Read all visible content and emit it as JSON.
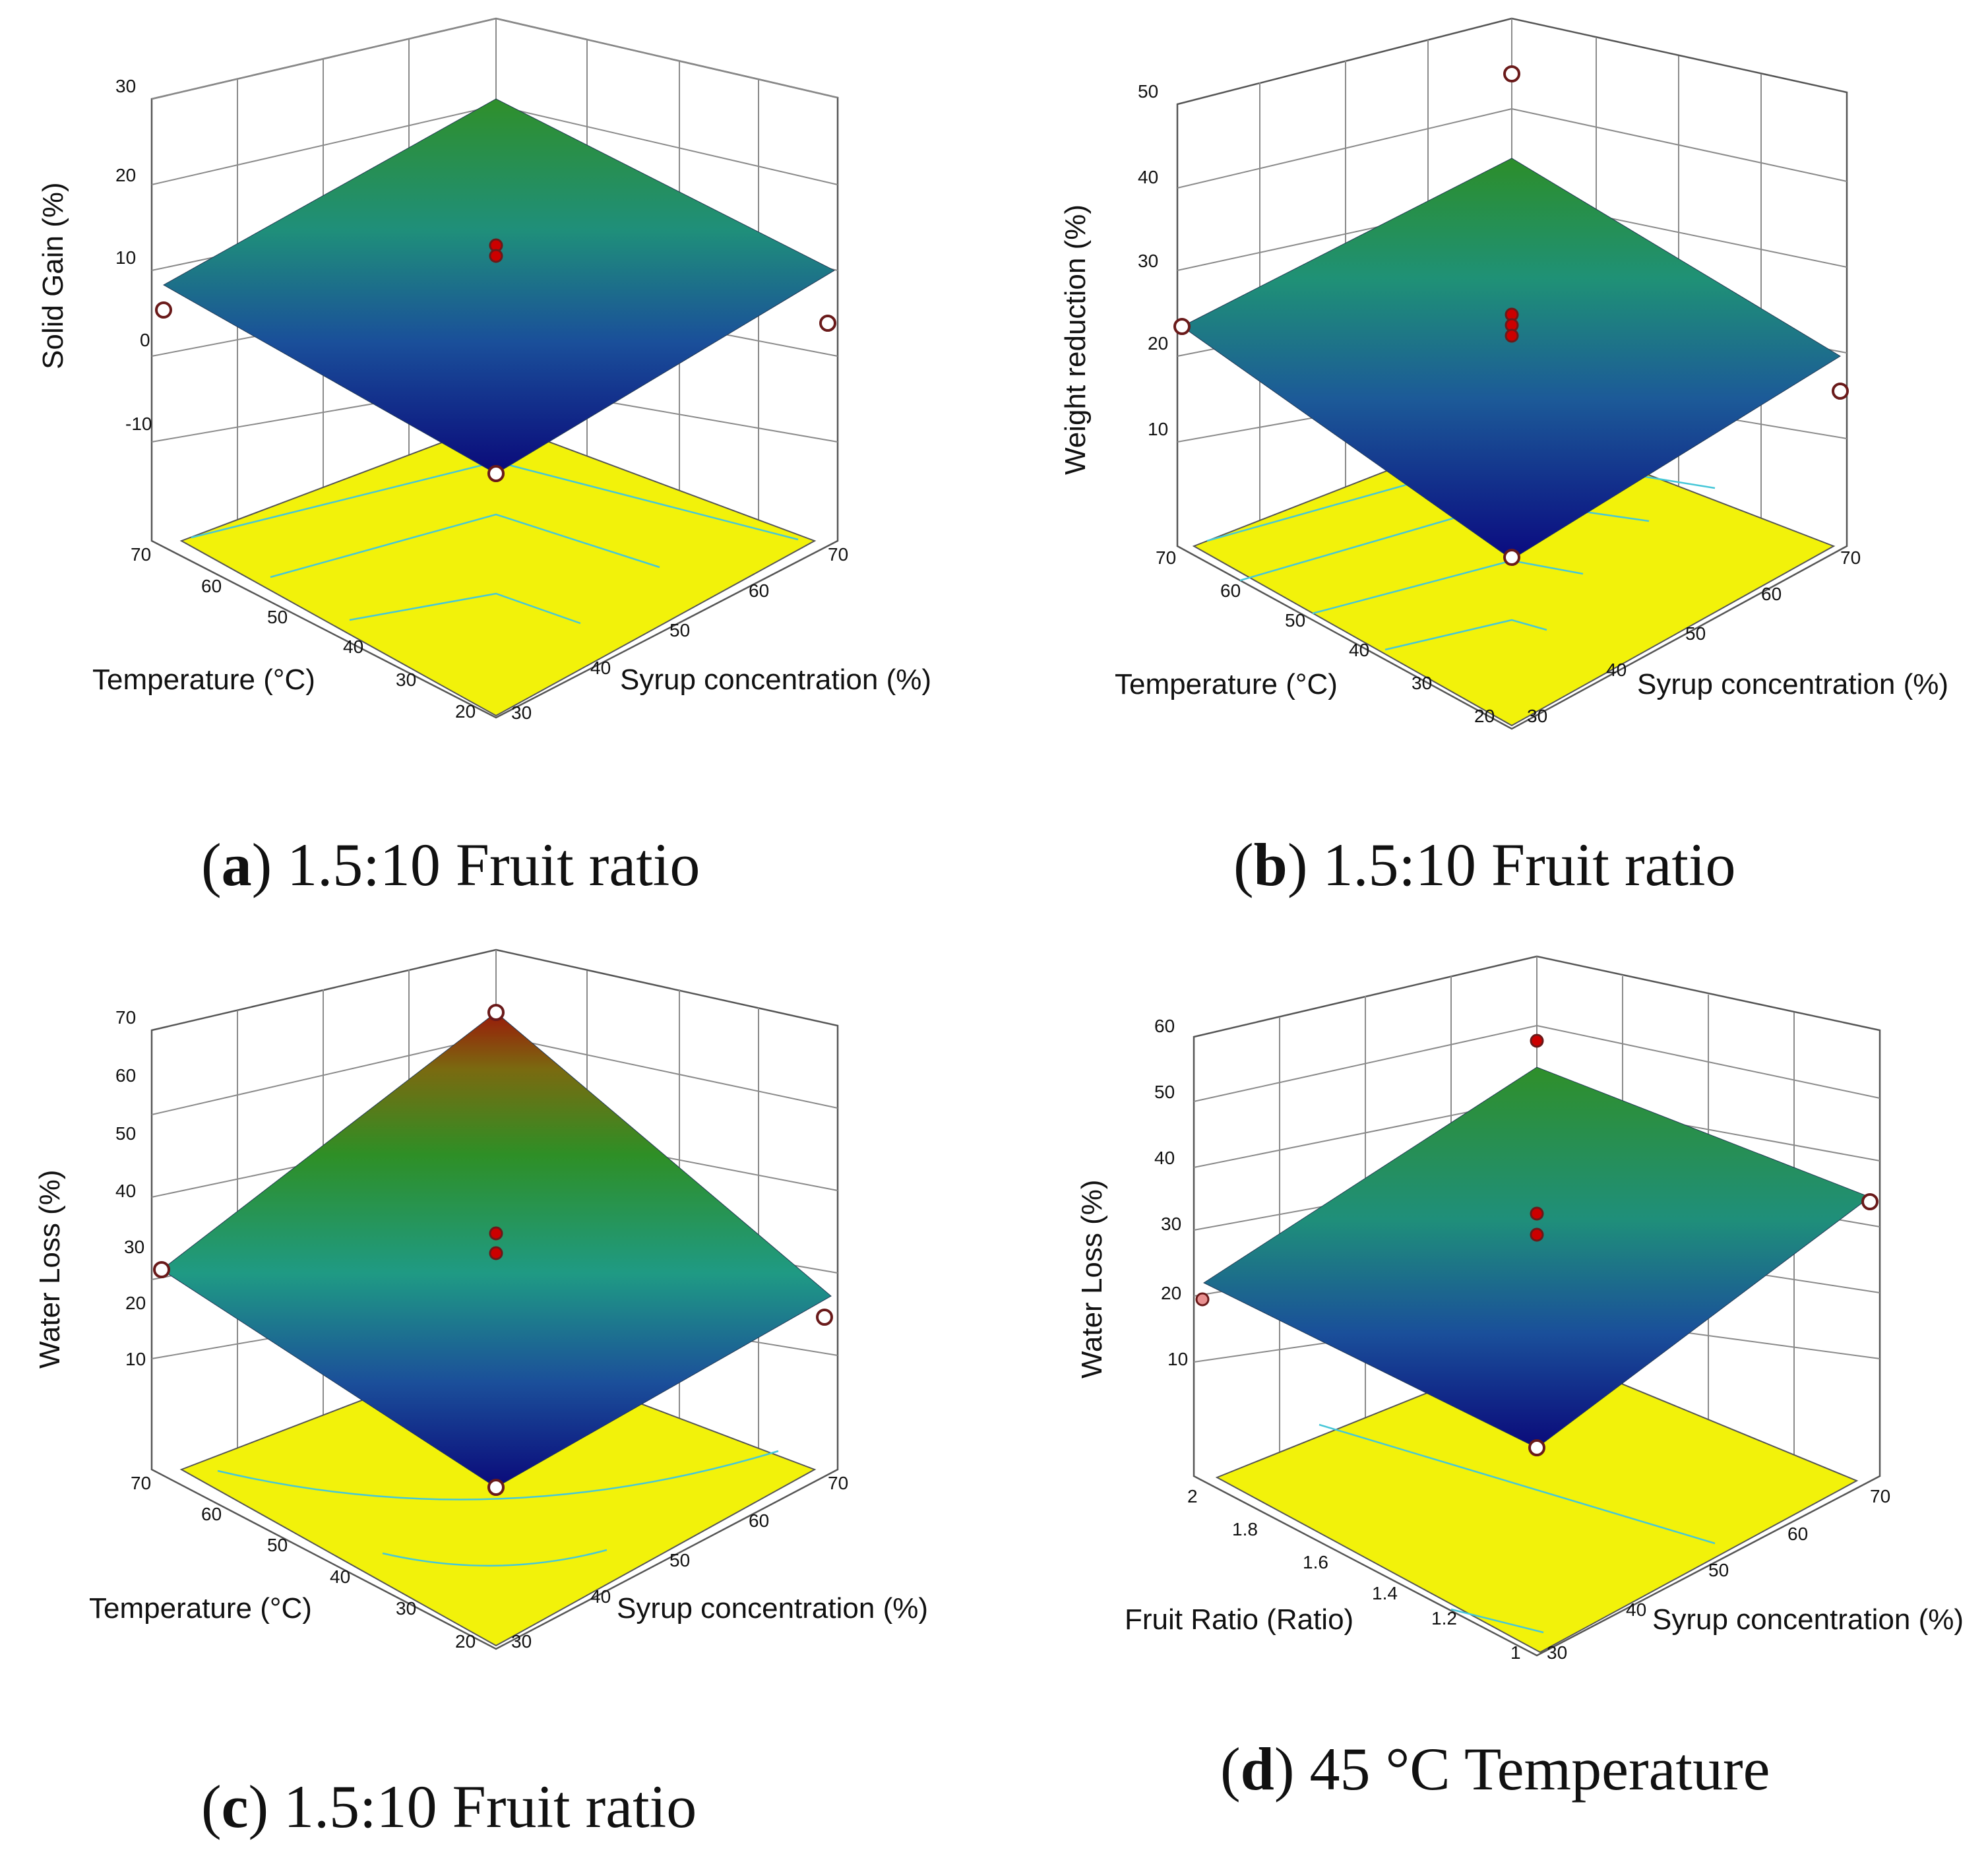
{
  "charts": [
    {
      "caption_letter": "a",
      "caption_text": "1.5:10 Fruit ratio",
      "z_label": "Solid Gain (%)",
      "x_label": "Temperature (°C)",
      "y_label": "Syrup concentration (%)",
      "x_ticks": [
        "70",
        "60",
        "50",
        "40",
        "30",
        "20"
      ],
      "y_ticks": [
        "30",
        "40",
        "50",
        "60",
        "70"
      ],
      "z_ticks": [
        "30",
        "20",
        "10",
        "0",
        "-10"
      ]
    },
    {
      "caption_letter": "b",
      "caption_text": "1.5:10 Fruit ratio",
      "z_label": "Weight reduction (%)",
      "x_label": "Temperature (°C)",
      "y_label": "Syrup concentration (%)",
      "x_ticks": [
        "70",
        "60",
        "50",
        "40",
        "30",
        "20"
      ],
      "y_ticks": [
        "30",
        "40",
        "50",
        "60",
        "70"
      ],
      "z_ticks": [
        "50",
        "40",
        "30",
        "20",
        "10"
      ]
    },
    {
      "caption_letter": "c",
      "caption_text": "1.5:10 Fruit ratio",
      "z_label": "Water Loss  (%)",
      "x_label": "Temperature (°C)",
      "y_label": "Syrup concentration (%)",
      "x_ticks": [
        "70",
        "60",
        "50",
        "40",
        "30",
        "20"
      ],
      "y_ticks": [
        "30",
        "40",
        "50",
        "60",
        "70"
      ],
      "z_ticks": [
        "70",
        "60",
        "50",
        "40",
        "30",
        "20",
        "10"
      ]
    },
    {
      "caption_letter": "d",
      "caption_text": "45 °C Temperature",
      "z_label": "Water Loss  (%)",
      "x_label": "Fruit  Ratio (Ratio)",
      "y_label": "Syrup concentration (%)",
      "x_ticks": [
        "2",
        "1.8",
        "1.6",
        "1.4",
        "1.2",
        "1"
      ],
      "y_ticks": [
        "30",
        "40",
        "50",
        "60",
        "70"
      ],
      "z_ticks": [
        "60",
        "50",
        "40",
        "30",
        "20",
        "10"
      ]
    }
  ],
  "chart_data": [
    {
      "type": "surface",
      "title": "(a) 1.5:10 Fruit ratio",
      "xlabel": "Temperature (°C)",
      "ylabel": "Syrup concentration (%)",
      "zlabel": "Solid Gain (%)",
      "xlim": [
        20,
        70
      ],
      "ylim": [
        30,
        70
      ],
      "zlim": [
        -20,
        30
      ],
      "surface_corners": {
        "T20_S30": -15,
        "T70_S30": 6,
        "T20_S70": 6,
        "T70_S70": 25
      },
      "design_points": [
        {
          "x": 20,
          "y": 30,
          "z": -15,
          "color": "white"
        },
        {
          "x": 70,
          "y": 30,
          "z": 6,
          "color": "white"
        },
        {
          "x": 20,
          "y": 70,
          "z": 5,
          "color": "white"
        },
        {
          "x": 45,
          "y": 50,
          "z": 11,
          "color": "red"
        },
        {
          "x": 45,
          "y": 50,
          "z": 10,
          "color": "red"
        }
      ]
    },
    {
      "type": "surface",
      "title": "(b) 1.5:10 Fruit ratio",
      "xlabel": "Temperature (°C)",
      "ylabel": "Syrup concentration (%)",
      "zlabel": "Weight reduction (%)",
      "xlim": [
        20,
        70
      ],
      "ylim": [
        30,
        70
      ],
      "zlim": [
        0,
        50
      ],
      "surface_corners": {
        "T20_S30": 0,
        "T70_S30": 22,
        "T20_S70": 20,
        "T70_S70": 42
      },
      "design_points": [
        {
          "x": 20,
          "y": 30,
          "z": 0,
          "color": "white"
        },
        {
          "x": 70,
          "y": 30,
          "z": 22,
          "color": "white"
        },
        {
          "x": 20,
          "y": 70,
          "z": 15,
          "color": "white"
        },
        {
          "x": 70,
          "y": 70,
          "z": 51,
          "color": "white"
        },
        {
          "x": 45,
          "y": 50,
          "z": 22,
          "color": "red"
        },
        {
          "x": 45,
          "y": 50,
          "z": 21,
          "color": "red"
        },
        {
          "x": 45,
          "y": 50,
          "z": 20,
          "color": "red"
        }
      ]
    },
    {
      "type": "surface",
      "title": "(c) 1.5:10 Fruit ratio",
      "xlabel": "Temperature (°C)",
      "ylabel": "Syrup concentration (%)",
      "zlabel": "Water Loss  (%)",
      "xlim": [
        20,
        70
      ],
      "ylim": [
        30,
        70
      ],
      "zlim": [
        0,
        70
      ],
      "surface_corners": {
        "T20_S30": 0,
        "T70_S30": 25,
        "T20_S70": 22,
        "T70_S70": 70
      },
      "design_points": [
        {
          "x": 20,
          "y": 30,
          "z": 0,
          "color": "white"
        },
        {
          "x": 70,
          "y": 30,
          "z": 25,
          "color": "white"
        },
        {
          "x": 20,
          "y": 70,
          "z": 22,
          "color": "white"
        },
        {
          "x": 70,
          "y": 70,
          "z": 70,
          "color": "white"
        },
        {
          "x": 45,
          "y": 50,
          "z": 30,
          "color": "red"
        },
        {
          "x": 45,
          "y": 50,
          "z": 27,
          "color": "red"
        }
      ]
    },
    {
      "type": "surface",
      "title": "(d) 45 °C Temperature",
      "xlabel": "Fruit  Ratio (Ratio)",
      "ylabel": "Syrup concentration (%)",
      "zlabel": "Water Loss  (%)",
      "xlim": [
        1,
        2
      ],
      "ylim": [
        30,
        70
      ],
      "zlim": [
        0,
        60
      ],
      "surface_corners": {
        "R1_S30": 0,
        "R2_S30": 21,
        "R1_S70": 34,
        "R2_S70": 52
      },
      "design_points": [
        {
          "x": 1,
          "y": 30,
          "z": 0,
          "color": "white"
        },
        {
          "x": 1,
          "y": 70,
          "z": 34,
          "color": "white"
        },
        {
          "x": 2,
          "y": 30,
          "z": 20,
          "color": "pink"
        },
        {
          "x": 2,
          "y": 70,
          "z": 57,
          "color": "red"
        },
        {
          "x": 1.5,
          "y": 50,
          "z": 33,
          "color": "red"
        },
        {
          "x": 1.5,
          "y": 50,
          "z": 30,
          "color": "red"
        }
      ]
    }
  ]
}
